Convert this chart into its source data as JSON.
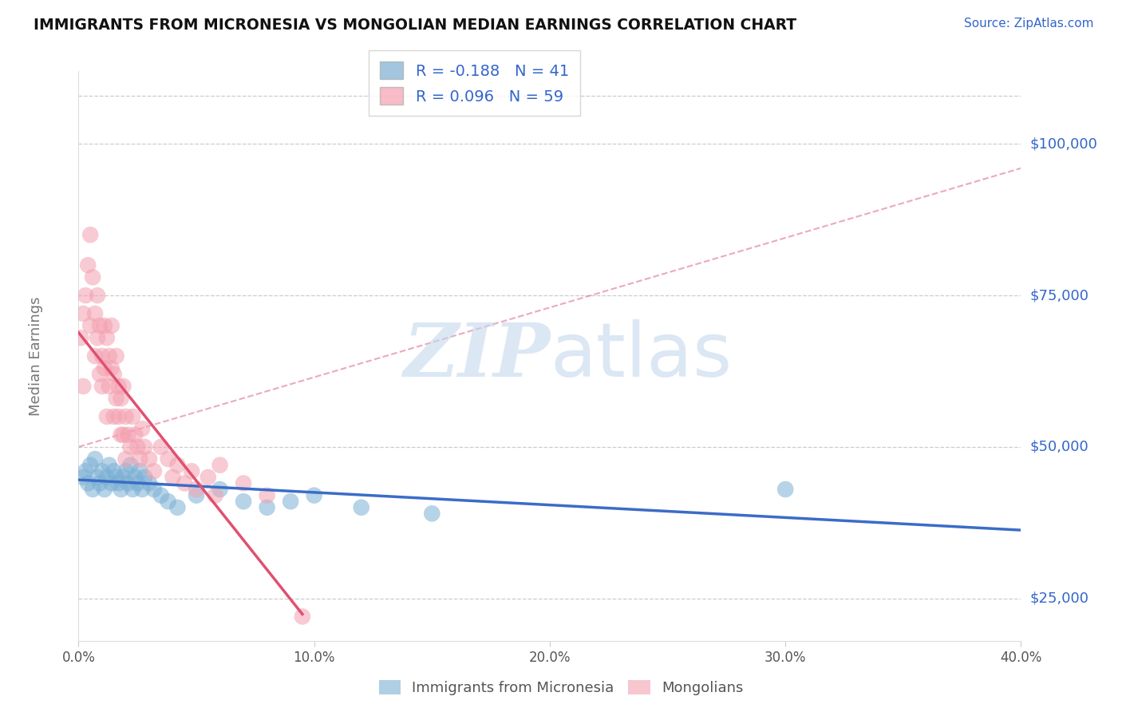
{
  "title": "IMMIGRANTS FROM MICRONESIA VS MONGOLIAN MEDIAN EARNINGS CORRELATION CHART",
  "source_text": "Source: ZipAtlas.com",
  "ylabel": "Median Earnings",
  "xlim": [
    0.0,
    0.4
  ],
  "ylim": [
    18000,
    112000
  ],
  "yticks": [
    25000,
    50000,
    75000,
    100000
  ],
  "ytick_labels": [
    "$25,000",
    "$50,000",
    "$75,000",
    "$100,000"
  ],
  "xticks": [
    0.0,
    0.1,
    0.2,
    0.3,
    0.4
  ],
  "xtick_labels": [
    "0.0%",
    "10.0%",
    "20.0%",
    "30.0%",
    "40.0%"
  ],
  "blue_R": -0.188,
  "blue_N": 41,
  "pink_R": 0.096,
  "pink_N": 59,
  "blue_color": "#7BAFD4",
  "pink_color": "#F4A0B0",
  "blue_line_color": "#3B6CC7",
  "pink_line_color": "#E05070",
  "blue_label": "Immigrants from Micronesia",
  "pink_label": "Mongolians",
  "watermark_zip": "ZIP",
  "watermark_atlas": "atlas",
  "background_color": "#FFFFFF",
  "blue_x": [
    0.002,
    0.003,
    0.004,
    0.005,
    0.006,
    0.007,
    0.008,
    0.009,
    0.01,
    0.011,
    0.012,
    0.013,
    0.014,
    0.015,
    0.016,
    0.017,
    0.018,
    0.019,
    0.02,
    0.021,
    0.022,
    0.023,
    0.024,
    0.025,
    0.026,
    0.027,
    0.028,
    0.03,
    0.032,
    0.035,
    0.038,
    0.042,
    0.05,
    0.06,
    0.07,
    0.08,
    0.09,
    0.1,
    0.12,
    0.15,
    0.3
  ],
  "blue_y": [
    45000,
    46000,
    44000,
    47000,
    43000,
    48000,
    45000,
    44000,
    46000,
    43000,
    45000,
    47000,
    44000,
    46000,
    45000,
    44000,
    43000,
    45000,
    46000,
    44000,
    47000,
    43000,
    45000,
    44000,
    46000,
    43000,
    45000,
    44000,
    43000,
    42000,
    41000,
    40000,
    42000,
    43000,
    41000,
    40000,
    41000,
    42000,
    40000,
    39000,
    43000
  ],
  "pink_x": [
    0.001,
    0.002,
    0.002,
    0.003,
    0.004,
    0.005,
    0.005,
    0.006,
    0.007,
    0.007,
    0.008,
    0.008,
    0.009,
    0.009,
    0.01,
    0.01,
    0.011,
    0.011,
    0.012,
    0.012,
    0.013,
    0.013,
    0.014,
    0.014,
    0.015,
    0.015,
    0.016,
    0.016,
    0.017,
    0.017,
    0.018,
    0.018,
    0.019,
    0.019,
    0.02,
    0.02,
    0.021,
    0.022,
    0.023,
    0.024,
    0.025,
    0.026,
    0.027,
    0.028,
    0.03,
    0.032,
    0.035,
    0.038,
    0.04,
    0.042,
    0.045,
    0.048,
    0.05,
    0.055,
    0.058,
    0.06,
    0.07,
    0.08,
    0.095
  ],
  "pink_y": [
    68000,
    72000,
    60000,
    75000,
    80000,
    85000,
    70000,
    78000,
    72000,
    65000,
    68000,
    75000,
    62000,
    70000,
    65000,
    60000,
    63000,
    70000,
    68000,
    55000,
    65000,
    60000,
    63000,
    70000,
    62000,
    55000,
    58000,
    65000,
    60000,
    55000,
    52000,
    58000,
    60000,
    52000,
    55000,
    48000,
    52000,
    50000,
    55000,
    52000,
    50000,
    48000,
    53000,
    50000,
    48000,
    46000,
    50000,
    48000,
    45000,
    47000,
    44000,
    46000,
    43000,
    45000,
    42000,
    47000,
    44000,
    42000,
    22000
  ],
  "dashed_line_x": [
    0.0,
    0.4
  ],
  "dashed_line_y": [
    50000,
    96000
  ]
}
